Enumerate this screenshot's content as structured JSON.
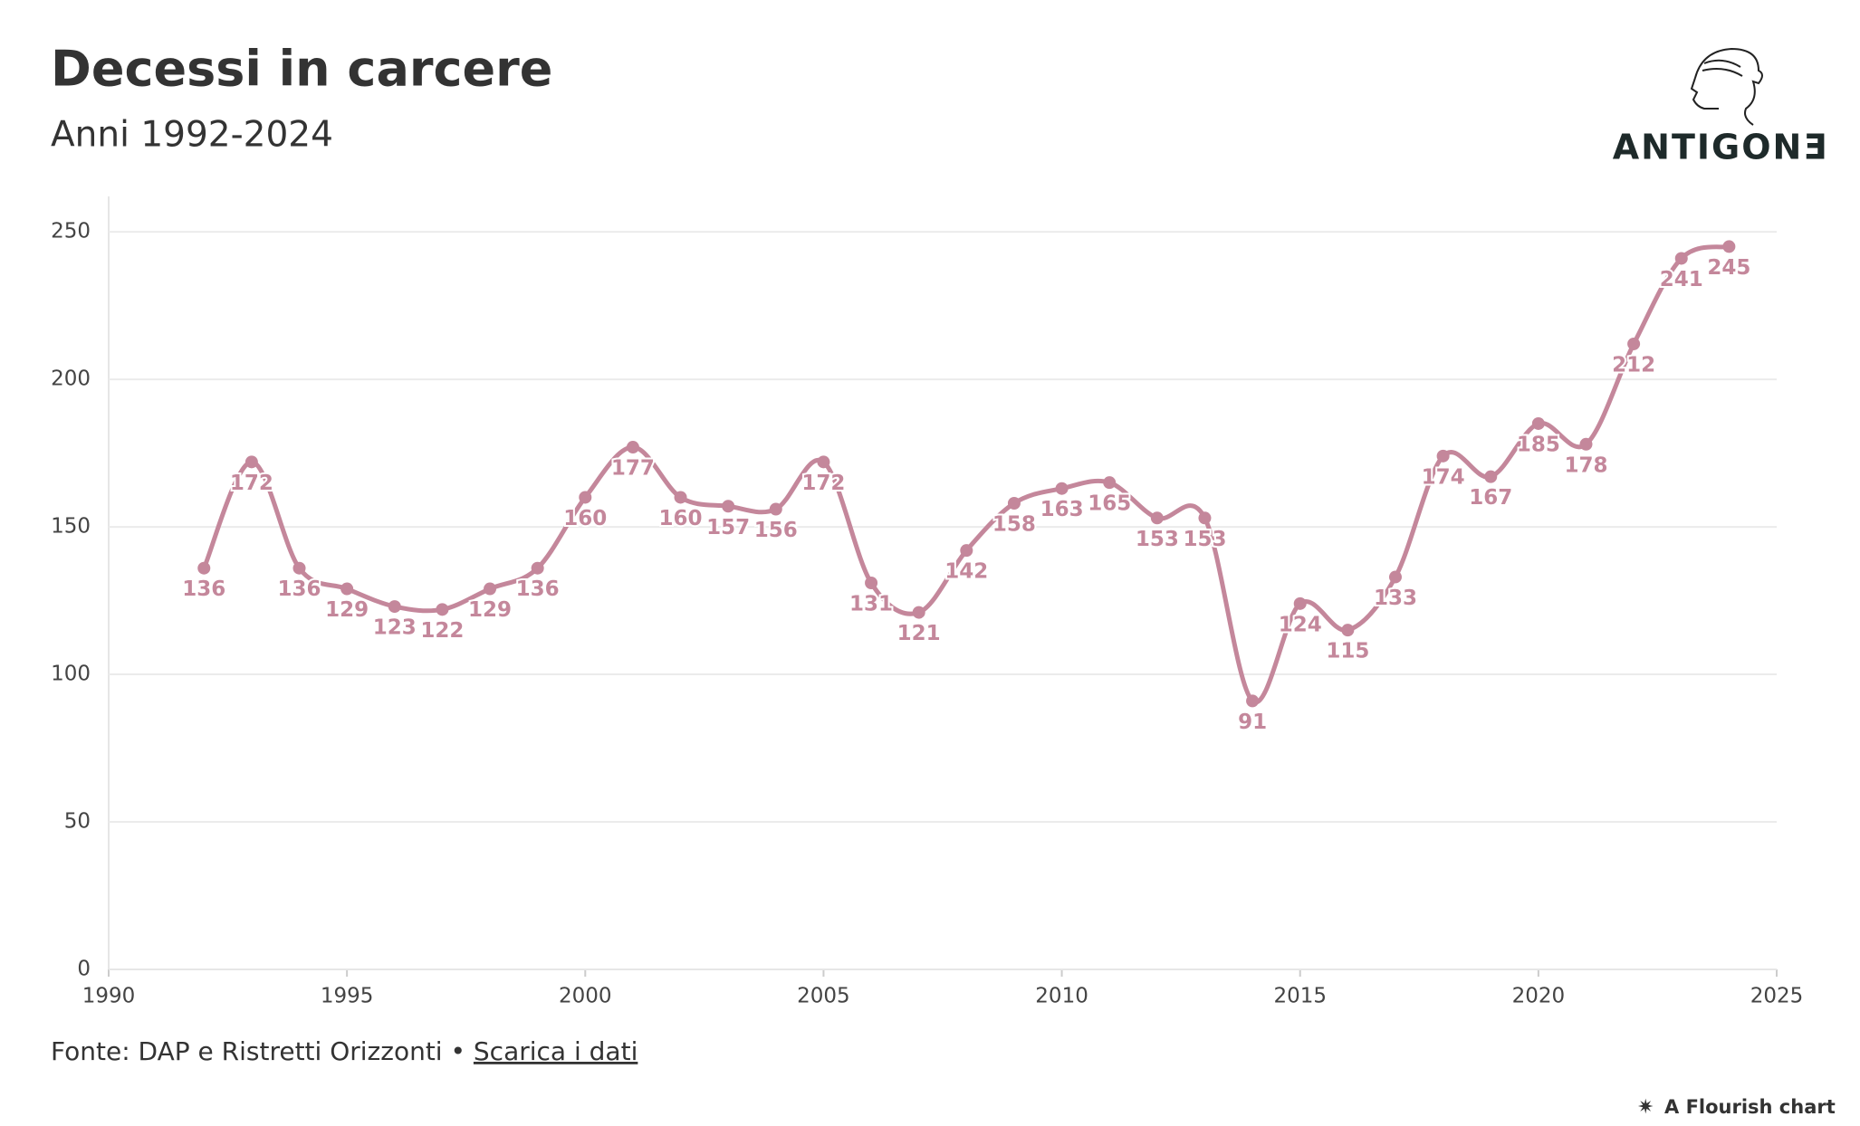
{
  "chart_data": {
    "type": "line",
    "title": "Decessi in carcere",
    "subtitle": "Anni 1992-2024",
    "logo": "ANTIGONƎ",
    "x": [
      1992,
      1993,
      1994,
      1995,
      1996,
      1997,
      1998,
      1999,
      2000,
      2001,
      2002,
      2003,
      2004,
      2005,
      2006,
      2007,
      2008,
      2009,
      2010,
      2011,
      2012,
      2013,
      2014,
      2015,
      2016,
      2017,
      2018,
      2019,
      2020,
      2021,
      2022,
      2023,
      2024
    ],
    "values": [
      136,
      172,
      136,
      129,
      123,
      122,
      129,
      136,
      160,
      177,
      160,
      157,
      156,
      172,
      131,
      121,
      142,
      158,
      163,
      165,
      153,
      153,
      91,
      124,
      115,
      133,
      174,
      167,
      185,
      178,
      212,
      241,
      245
    ],
    "color": "#c4879b",
    "xlim": [
      1990,
      2025
    ],
    "xticks": [
      1990,
      1995,
      2000,
      2005,
      2010,
      2015,
      2020,
      2025
    ],
    "ylim": [
      0,
      262
    ],
    "yticks": [
      0,
      50,
      100,
      150,
      200,
      250
    ],
    "grid": true,
    "source": "Fonte: DAP e Ristretti Orizzonti",
    "separator": "•",
    "download": "Scarica i dati",
    "credit": "A Flourish chart"
  }
}
